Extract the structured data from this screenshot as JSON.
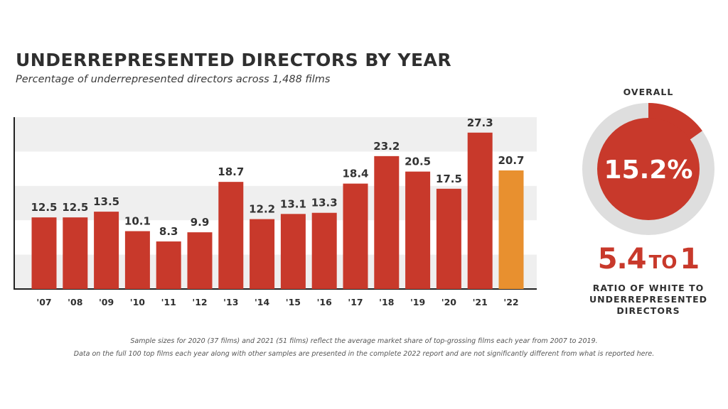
{
  "colors": {
    "bar": "#c8392b",
    "highlight_bar": "#e8902f",
    "band": "#efefef",
    "donut_track": "#dedede",
    "text": "#2f2f2f"
  },
  "chart_data": {
    "type": "bar",
    "title": "UNDERREPRESENTED DIRECTORS BY YEAR",
    "subtitle": "Percentage of underrepresented directors across 1,488 films",
    "categories": [
      "'07",
      "'08",
      "'09",
      "'10",
      "'11",
      "'12",
      "'13",
      "'14",
      "'15",
      "'16",
      "'17",
      "'18",
      "'19",
      "'20",
      "'21",
      "'22"
    ],
    "values": [
      12.5,
      12.5,
      13.5,
      10.1,
      8.3,
      9.9,
      18.7,
      12.2,
      13.1,
      13.3,
      18.4,
      23.2,
      20.5,
      17.5,
      27.3,
      20.7
    ],
    "data_labels": [
      "12.5",
      "12.5",
      "13.5",
      "10.1",
      "8.3",
      "9.9",
      "18.7",
      "12.2",
      "13.1",
      "13.3",
      "18.4",
      "23.2",
      "20.5",
      "17.5",
      "27.3",
      "20.7"
    ],
    "highlight_category": "'22",
    "ylim": [
      0,
      30
    ],
    "xlabel": "",
    "ylabel": "",
    "grid": "alternating horizontal bands"
  },
  "overall": {
    "label": "OVERALL",
    "value": 15.2,
    "value_text": "15.2%"
  },
  "ratio": {
    "left": "5.4",
    "connector": "TO",
    "right": "1",
    "caption_lines": [
      "RATIO OF WHITE TO",
      "UNDERREPRESENTED",
      "DIRECTORS"
    ]
  },
  "footnote": {
    "lines": [
      "Sample sizes for 2020 (37 films) and 2021 (51 films) reflect the average market share of  top-grossing films each year from 2007 to 2019.",
      "Data on the full 100 top films each year along with other samples are presented in the complete 2022 report and are not significantly different from what is reported here."
    ]
  }
}
